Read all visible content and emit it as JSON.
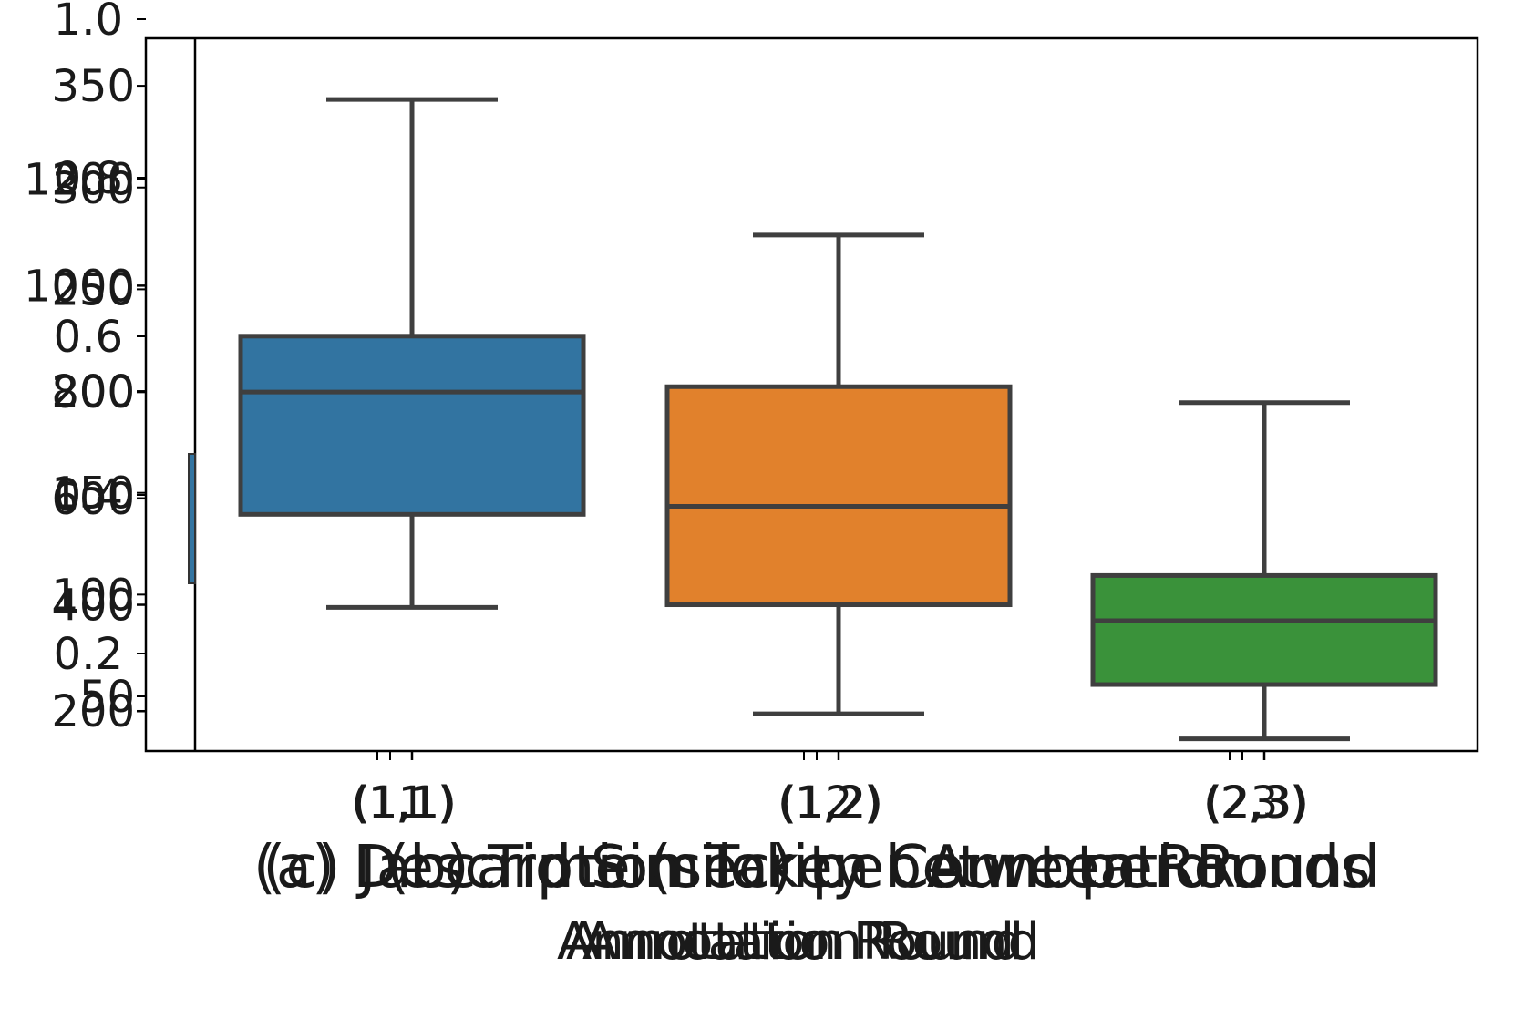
{
  "chart_data": [
    {
      "type": "box",
      "title": "(a) Description Token Count per Round",
      "xlabel": "Annotation Round",
      "y_ticks": [
        "50",
        "100",
        "150",
        "200",
        "250",
        "300",
        "350"
      ],
      "categories": [
        "(1,1)",
        "(1,2)",
        "(2,3)"
      ]
    },
    {
      "type": "box",
      "title": "(b) Time (sec) per Annotation",
      "xlabel": "Annotation Round",
      "y_ticks": [
        "200",
        "400",
        "600",
        "800",
        "1000",
        "1200"
      ],
      "categories": [
        "1",
        "2",
        "3"
      ],
      "ylim": [
        125,
        1465
      ],
      "series": [
        {
          "category": "1",
          "whisker_low": 395,
          "q1": 570,
          "median": 800,
          "q3": 905,
          "whisker_high": 1350,
          "color": "#3274a1"
        },
        {
          "category": "2",
          "whisker_low": 195,
          "q1": 400,
          "median": 585,
          "q3": 810,
          "whisker_high": 1095,
          "color": "#e1812c"
        },
        {
          "category": "3",
          "whisker_low": 148,
          "q1": 250,
          "median": 370,
          "q3": 455,
          "whisker_high": 780,
          "color": "#3a923a"
        }
      ]
    },
    {
      "type": "box",
      "title": "(c) Jaccard Similarity between Rounds",
      "xlabel": "Annotation Round",
      "y_ticks": [
        "0.2",
        "0.4",
        "0.6",
        "0.8",
        "1.0"
      ],
      "categories": [
        "(1,1)",
        "(1,2)",
        "(2,3)"
      ]
    }
  ]
}
